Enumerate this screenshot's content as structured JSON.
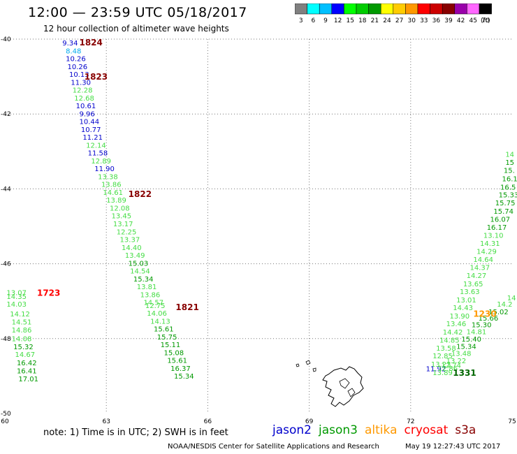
{
  "header": {
    "title": "12:00  —  23:59  UTC  05/18/2017",
    "subtitle": "12 hour collection of altimeter wave heights"
  },
  "colorbar": {
    "labels": [
      "3",
      "6",
      "9",
      "12",
      "15",
      "18",
      "21",
      "24",
      "27",
      "30",
      "33",
      "36",
      "39",
      "42",
      "45",
      "70"
    ],
    "unit": "(ft)",
    "colors": [
      "#808080",
      "#00ffff",
      "#00c0ff",
      "#0000ff",
      "#00ff00",
      "#00cc00",
      "#009900",
      "#ffff00",
      "#ffcc00",
      "#ff9900",
      "#ff0000",
      "#cc0000",
      "#880000",
      "#9900aa",
      "#ff66ff",
      "#000000"
    ]
  },
  "chart_data": {
    "type": "scatter",
    "xlim": [
      60,
      75
    ],
    "ylim": [
      -50,
      -40
    ],
    "x_ticks": [
      {
        "label": "60",
        "value": 60
      },
      {
        "label": "63",
        "value": 63
      },
      {
        "label": "66",
        "value": 66
      },
      {
        "label": "69",
        "value": 69
      },
      {
        "label": "72",
        "value": 72
      },
      {
        "label": "75",
        "value": 75
      }
    ],
    "y_ticks": [
      {
        "label": "-40",
        "value": -40
      },
      {
        "label": "-42",
        "value": -42
      },
      {
        "label": "-44",
        "value": -44
      },
      {
        "label": "-46",
        "value": -46
      },
      {
        "label": "-48",
        "value": -48
      },
      {
        "label": "-50",
        "value": -50
      }
    ],
    "points": [
      {
        "text": "9.34",
        "lon": 61.7,
        "lat": -40.17,
        "color": "#0000cc"
      },
      {
        "text": "8.48",
        "lon": 61.8,
        "lat": -40.38,
        "color": "#00aaee"
      },
      {
        "text": "10.26",
        "lon": 61.8,
        "lat": -40.59,
        "color": "#0000cc"
      },
      {
        "text": "10.26",
        "lon": 61.85,
        "lat": -40.8,
        "color": "#0000cc"
      },
      {
        "text": "10.13",
        "lon": 61.9,
        "lat": -41.01,
        "color": "#0000cc"
      },
      {
        "text": "11.30",
        "lon": 61.95,
        "lat": -41.22,
        "color": "#0000cc"
      },
      {
        "text": "12.28",
        "lon": 62.0,
        "lat": -41.43,
        "color": "#44dd44"
      },
      {
        "text": "12.68",
        "lon": 62.05,
        "lat": -41.64,
        "color": "#44dd44"
      },
      {
        "text": "10.61",
        "lon": 62.1,
        "lat": -41.85,
        "color": "#0000cc"
      },
      {
        "text": "9.96",
        "lon": 62.2,
        "lat": -42.06,
        "color": "#0000cc"
      },
      {
        "text": "10.44",
        "lon": 62.2,
        "lat": -42.27,
        "color": "#0000cc"
      },
      {
        "text": "10.77",
        "lon": 62.25,
        "lat": -42.48,
        "color": "#0000cc"
      },
      {
        "text": "11.21",
        "lon": 62.3,
        "lat": -42.69,
        "color": "#0000cc"
      },
      {
        "text": "12.14",
        "lon": 62.4,
        "lat": -42.9,
        "color": "#44dd44"
      },
      {
        "text": "11.58",
        "lon": 62.45,
        "lat": -43.11,
        "color": "#0000cc"
      },
      {
        "text": "12.89",
        "lon": 62.55,
        "lat": -43.32,
        "color": "#44dd44"
      },
      {
        "text": "11.90",
        "lon": 62.65,
        "lat": -43.53,
        "color": "#0000cc"
      },
      {
        "text": "13.38",
        "lon": 62.75,
        "lat": -43.74,
        "color": "#44dd44"
      },
      {
        "text": "13.86",
        "lon": 62.85,
        "lat": -43.95,
        "color": "#44dd44"
      },
      {
        "text": "14.61",
        "lon": 62.9,
        "lat": -44.16,
        "color": "#44dd44"
      },
      {
        "text": "13.89",
        "lon": 63.0,
        "lat": -44.37,
        "color": "#44dd44"
      },
      {
        "text": "12.08",
        "lon": 63.1,
        "lat": -44.58,
        "color": "#44dd44"
      },
      {
        "text": "13.45",
        "lon": 63.15,
        "lat": -44.79,
        "color": "#44dd44"
      },
      {
        "text": "13.17",
        "lon": 63.2,
        "lat": -45.0,
        "color": "#44dd44"
      },
      {
        "text": "12.25",
        "lon": 63.3,
        "lat": -45.21,
        "color": "#44dd44"
      },
      {
        "text": "13.37",
        "lon": 63.4,
        "lat": -45.42,
        "color": "#44dd44"
      },
      {
        "text": "14.40",
        "lon": 63.45,
        "lat": -45.63,
        "color": "#44dd44"
      },
      {
        "text": "13.49",
        "lon": 63.55,
        "lat": -45.84,
        "color": "#44dd44"
      },
      {
        "text": "15.03",
        "lon": 63.65,
        "lat": -46.05,
        "color": "#009900"
      },
      {
        "text": "14.54",
        "lon": 63.7,
        "lat": -46.26,
        "color": "#44dd44"
      },
      {
        "text": "15.34",
        "lon": 63.8,
        "lat": -46.47,
        "color": "#009900"
      },
      {
        "text": "13.81",
        "lon": 63.9,
        "lat": -46.68,
        "color": "#44dd44"
      },
      {
        "text": "13.86",
        "lon": 64.0,
        "lat": -46.89,
        "color": "#44dd44"
      },
      {
        "text": "14.57",
        "lon": 64.1,
        "lat": -47.1,
        "color": "#44dd44"
      },
      {
        "text": "12.75",
        "lon": 64.15,
        "lat": -47.18,
        "color": "#44dd44"
      },
      {
        "text": "14.06",
        "lon": 64.2,
        "lat": -47.39,
        "color": "#44dd44"
      },
      {
        "text": "14.13",
        "lon": 64.3,
        "lat": -47.6,
        "color": "#44dd44"
      },
      {
        "text": "15.61",
        "lon": 64.4,
        "lat": -47.81,
        "color": "#009900"
      },
      {
        "text": "15.75",
        "lon": 64.5,
        "lat": -48.02,
        "color": "#009900"
      },
      {
        "text": "15.11",
        "lon": 64.6,
        "lat": -48.23,
        "color": "#009900"
      },
      {
        "text": "15.08",
        "lon": 64.7,
        "lat": -48.44,
        "color": "#009900"
      },
      {
        "text": "15.61",
        "lon": 64.8,
        "lat": -48.65,
        "color": "#009900"
      },
      {
        "text": "16.37",
        "lon": 64.9,
        "lat": -48.86,
        "color": "#009900"
      },
      {
        "text": "15.34",
        "lon": 65.0,
        "lat": -49.07,
        "color": "#009900"
      },
      {
        "text": "13.07",
        "lon": 60.05,
        "lat": -46.84,
        "color": "#44dd44"
      },
      {
        "text": "14.35",
        "lon": 60.05,
        "lat": -46.94,
        "color": "#44dd44"
      },
      {
        "text": "14.03",
        "lon": 60.05,
        "lat": -47.15,
        "color": "#44dd44"
      },
      {
        "text": "14.12",
        "lon": 60.15,
        "lat": -47.41,
        "color": "#44dd44"
      },
      {
        "text": "14.51",
        "lon": 60.2,
        "lat": -47.62,
        "color": "#44dd44"
      },
      {
        "text": "14.86",
        "lon": 60.2,
        "lat": -47.84,
        "color": "#44dd44"
      },
      {
        "text": "14.08",
        "lon": 60.2,
        "lat": -48.07,
        "color": "#44dd44"
      },
      {
        "text": "15.32",
        "lon": 60.25,
        "lat": -48.28,
        "color": "#009900"
      },
      {
        "text": "14.67",
        "lon": 60.3,
        "lat": -48.49,
        "color": "#44dd44"
      },
      {
        "text": "16.42",
        "lon": 60.35,
        "lat": -48.71,
        "color": "#009900"
      },
      {
        "text": "16.41",
        "lon": 60.35,
        "lat": -48.93,
        "color": "#009900"
      },
      {
        "text": "17.01",
        "lon": 60.4,
        "lat": -49.14,
        "color": "#009900"
      },
      {
        "text": "14",
        "lon": 74.8,
        "lat": -43.14,
        "color": "#44dd44"
      },
      {
        "text": "15",
        "lon": 74.8,
        "lat": -43.36,
        "color": "#009900"
      },
      {
        "text": "15.",
        "lon": 74.75,
        "lat": -43.57,
        "color": "#009900"
      },
      {
        "text": "16.1",
        "lon": 74.7,
        "lat": -43.8,
        "color": "#009900"
      },
      {
        "text": "16.5",
        "lon": 74.65,
        "lat": -44.02,
        "color": "#009900"
      },
      {
        "text": "15.33",
        "lon": 74.6,
        "lat": -44.23,
        "color": "#009900"
      },
      {
        "text": "15.75",
        "lon": 74.5,
        "lat": -44.44,
        "color": "#009900"
      },
      {
        "text": "15.74",
        "lon": 74.45,
        "lat": -44.66,
        "color": "#009900"
      },
      {
        "text": "16.07",
        "lon": 74.35,
        "lat": -44.88,
        "color": "#009900"
      },
      {
        "text": "16.17",
        "lon": 74.25,
        "lat": -45.09,
        "color": "#009900"
      },
      {
        "text": "13.10",
        "lon": 74.15,
        "lat": -45.31,
        "color": "#44dd44"
      },
      {
        "text": "14.31",
        "lon": 74.05,
        "lat": -45.52,
        "color": "#44dd44"
      },
      {
        "text": "14.29",
        "lon": 73.95,
        "lat": -45.74,
        "color": "#44dd44"
      },
      {
        "text": "14.64",
        "lon": 73.85,
        "lat": -45.95,
        "color": "#44dd44"
      },
      {
        "text": "14.37",
        "lon": 73.75,
        "lat": -46.17,
        "color": "#44dd44"
      },
      {
        "text": "14.27",
        "lon": 73.65,
        "lat": -46.38,
        "color": "#44dd44"
      },
      {
        "text": "13.65",
        "lon": 73.55,
        "lat": -46.6,
        "color": "#44dd44"
      },
      {
        "text": "13.63",
        "lon": 73.45,
        "lat": -46.81,
        "color": "#44dd44"
      },
      {
        "text": "13.01",
        "lon": 73.35,
        "lat": -47.03,
        "color": "#44dd44"
      },
      {
        "text": "14.43",
        "lon": 73.25,
        "lat": -47.24,
        "color": "#44dd44"
      },
      {
        "text": "13.90",
        "lon": 73.15,
        "lat": -47.46,
        "color": "#44dd44"
      },
      {
        "text": "13.46",
        "lon": 73.05,
        "lat": -47.67,
        "color": "#44dd44"
      },
      {
        "text": "14.42",
        "lon": 72.95,
        "lat": -47.89,
        "color": "#44dd44"
      },
      {
        "text": "14.85",
        "lon": 72.85,
        "lat": -48.11,
        "color": "#44dd44"
      },
      {
        "text": "13.58",
        "lon": 72.75,
        "lat": -48.32,
        "color": "#44dd44"
      },
      {
        "text": "12.85",
        "lon": 72.65,
        "lat": -48.53,
        "color": "#44dd44"
      },
      {
        "text": "13.23",
        "lon": 72.6,
        "lat": -48.75,
        "color": "#44dd44"
      },
      {
        "text": "13.89",
        "lon": 72.65,
        "lat": -48.97,
        "color": "#44dd44"
      },
      {
        "text": "11.92",
        "lon": 72.45,
        "lat": -48.87,
        "color": "#0000cc"
      },
      {
        "text": "12.86",
        "lon": 72.8,
        "lat": -48.86,
        "color": "#44dd44"
      },
      {
        "text": "12.74",
        "lon": 72.9,
        "lat": -48.78,
        "color": "#44dd44"
      },
      {
        "text": "13.22",
        "lon": 73.05,
        "lat": -48.66,
        "color": "#44dd44"
      },
      {
        "text": "13.48",
        "lon": 73.2,
        "lat": -48.46,
        "color": "#44dd44"
      },
      {
        "text": "15.34",
        "lon": 73.35,
        "lat": -48.27,
        "color": "#009900"
      },
      {
        "text": "15.40",
        "lon": 73.5,
        "lat": -48.08,
        "color": "#009900"
      },
      {
        "text": "14.81",
        "lon": 73.65,
        "lat": -47.88,
        "color": "#44dd44"
      },
      {
        "text": "15.30",
        "lon": 73.8,
        "lat": -47.7,
        "color": "#009900"
      },
      {
        "text": "15.66",
        "lon": 74.0,
        "lat": -47.52,
        "color": "#009900"
      },
      {
        "text": "15.02",
        "lon": 74.3,
        "lat": -47.35,
        "color": "#009900"
      },
      {
        "text": "14.2",
        "lon": 74.55,
        "lat": -47.15,
        "color": "#44dd44"
      },
      {
        "text": "14",
        "lon": 74.85,
        "lat": -46.98,
        "color": "#44dd44"
      }
    ],
    "time_labels": [
      {
        "text": "1824",
        "lon": 62.2,
        "lat": -40.17,
        "color": "#880000"
      },
      {
        "text": "1823",
        "lon": 62.35,
        "lat": -41.08,
        "color": "#880000"
      },
      {
        "text": "1822",
        "lon": 63.65,
        "lat": -44.22,
        "color": "#880000"
      },
      {
        "text": "1821",
        "lon": 65.05,
        "lat": -47.24,
        "color": "#880000"
      },
      {
        "text": "1723",
        "lon": 60.95,
        "lat": -46.86,
        "color": "#ff0000"
      },
      {
        "text": "1230",
        "lon": 73.85,
        "lat": -47.42,
        "color": "#ff9900"
      },
      {
        "text": "1331",
        "lon": 73.25,
        "lat": -48.99,
        "color": "#006600"
      }
    ]
  },
  "footer": {
    "note": "note:  1) Time is in UTC;  2) SWH is in feet",
    "legend": [
      {
        "label": "jason2",
        "color": "#0000cc"
      },
      {
        "label": "jason3",
        "color": "#009900"
      },
      {
        "label": "altika",
        "color": "#ff9900"
      },
      {
        "label": "cryosat",
        "color": "#ff0000"
      },
      {
        "label": "s3a",
        "color": "#880000"
      }
    ],
    "credit": "NOAA/NESDIS Center for Satellite Applications and Research",
    "timestamp": "May 19 12:27:43 UTC 2017"
  }
}
